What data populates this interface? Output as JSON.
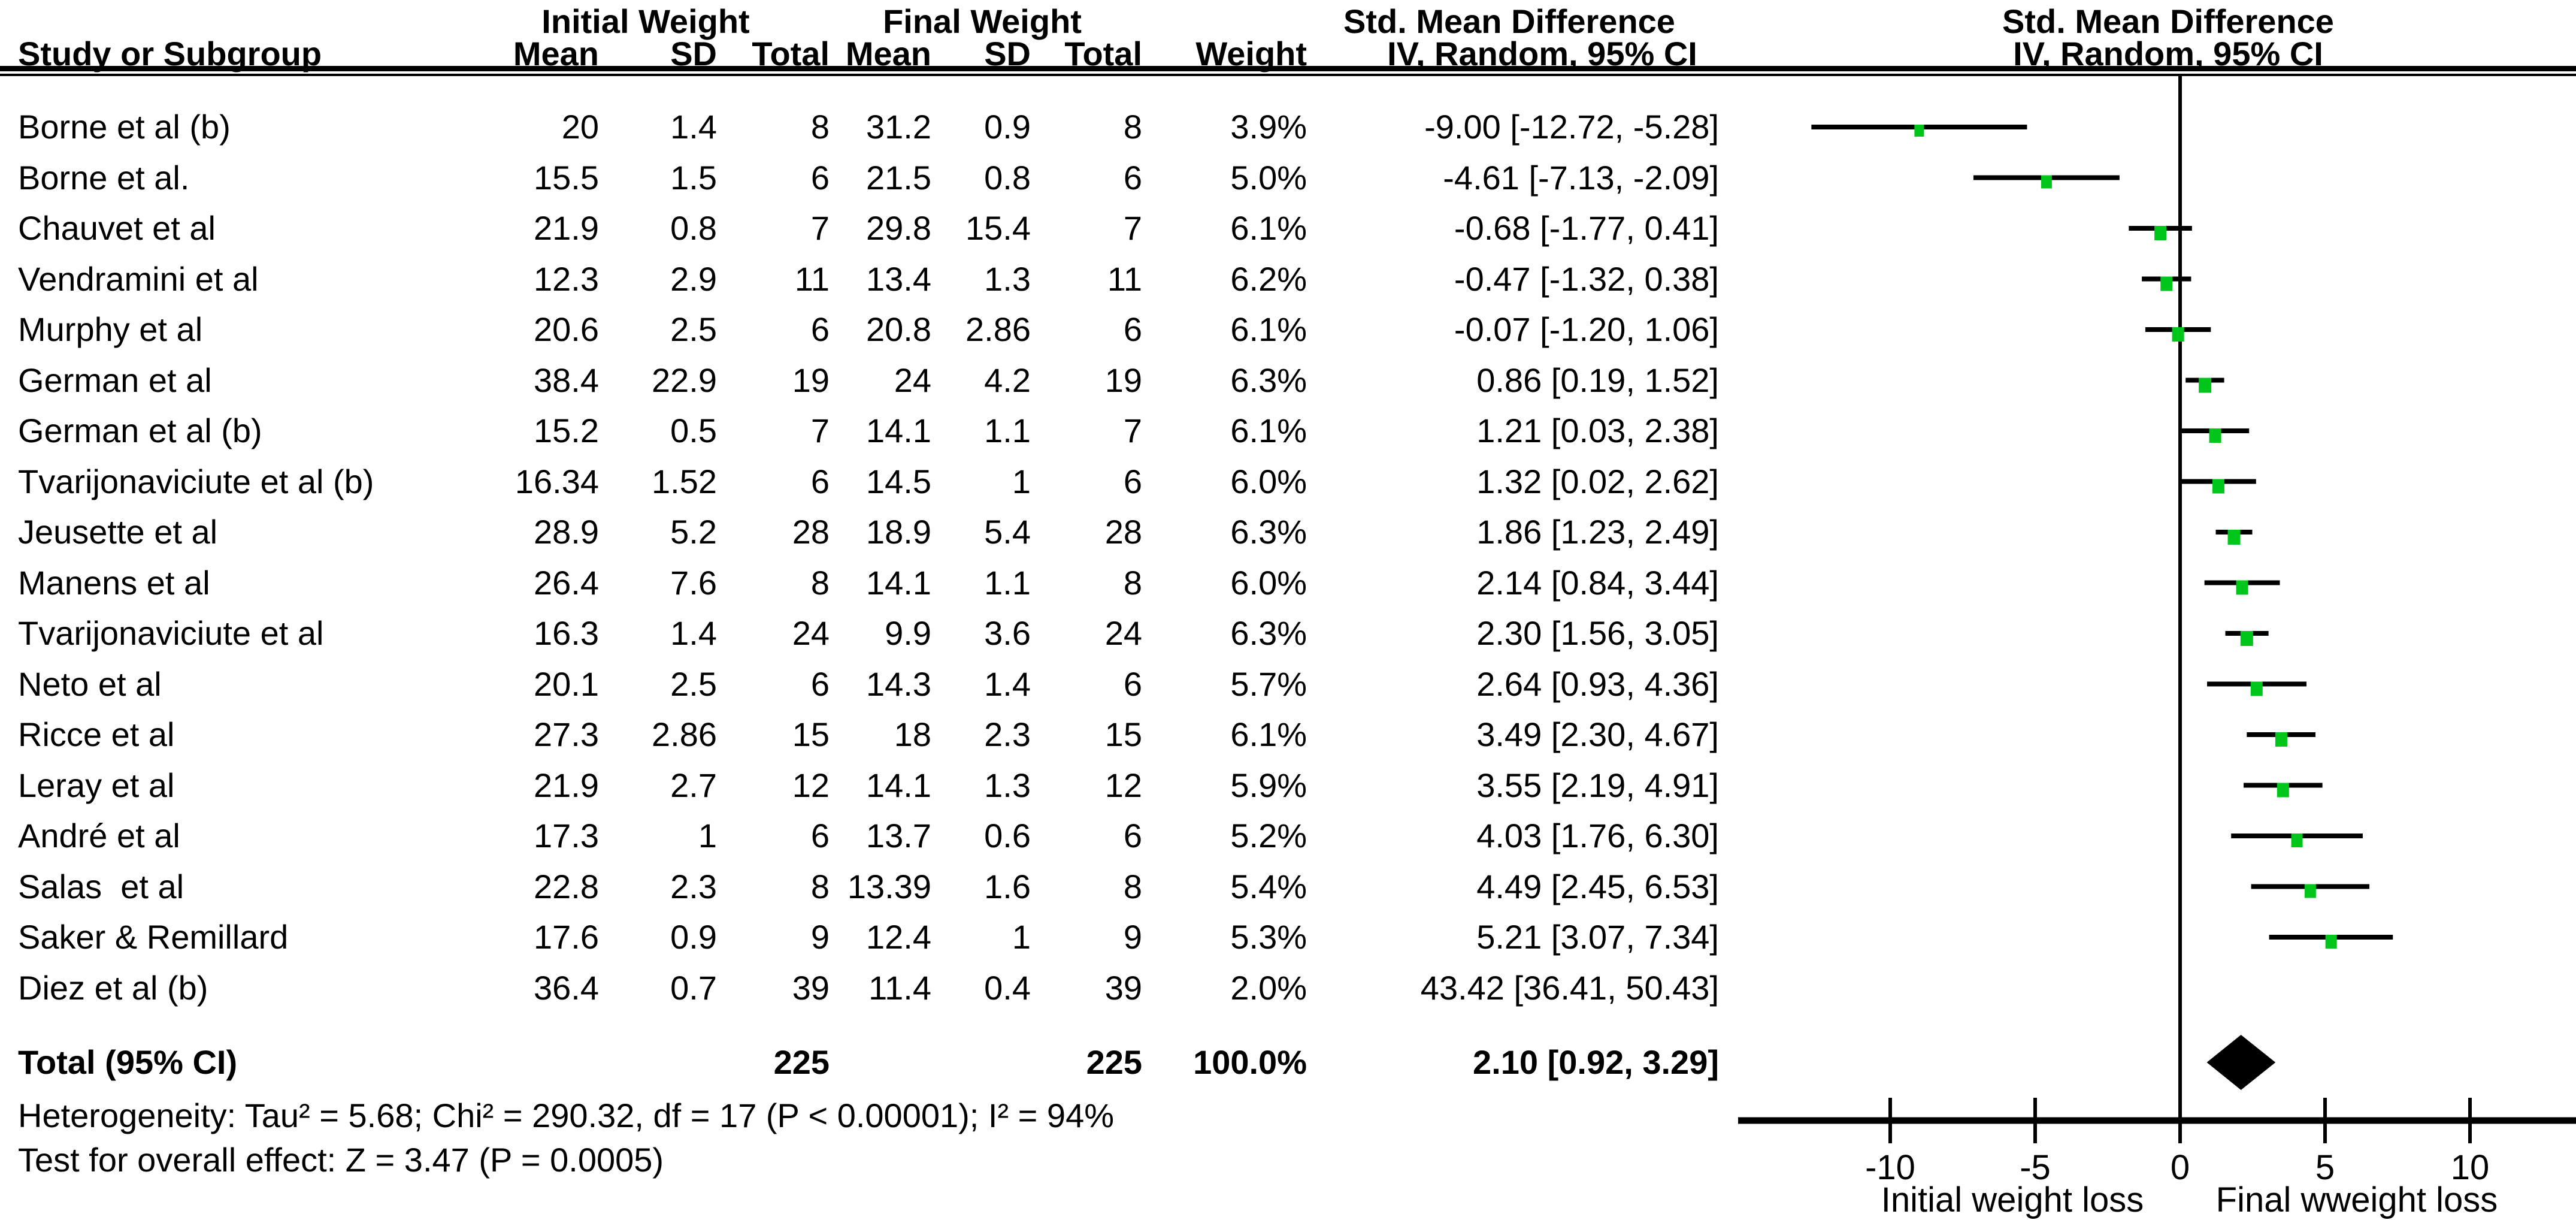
{
  "header": {
    "study_col": "Study or Subgroup",
    "group_initial": "Initial Weight",
    "group_final": "Final Weight",
    "smd_table_title": "Std. Mean Difference",
    "smd_table_sub": "IV, Random, 95% CI",
    "smd_plot_title": "Std. Mean Difference",
    "smd_plot_sub": "IV, Random, 95% CI",
    "mean1": "Mean",
    "sd1": "SD",
    "total1": "Total",
    "mean2": "Mean",
    "sd2": "SD",
    "total2": "Total",
    "weight": "Weight"
  },
  "rows": [
    {
      "study": "Borne et al (b)",
      "mean1": "20",
      "sd1": "1.4",
      "total1": "8",
      "mean2": "31.2",
      "sd2": "0.9",
      "total2": "8",
      "weight": "3.9%",
      "ci": "-9.00 [-12.72, -5.28]"
    },
    {
      "study": "Borne et al.",
      "mean1": "15.5",
      "sd1": "1.5",
      "total1": "6",
      "mean2": "21.5",
      "sd2": "0.8",
      "total2": "6",
      "weight": "5.0%",
      "ci": "-4.61 [-7.13, -2.09]"
    },
    {
      "study": "Chauvet et al",
      "mean1": "21.9",
      "sd1": "0.8",
      "total1": "7",
      "mean2": "29.8",
      "sd2": "15.4",
      "total2": "7",
      "weight": "6.1%",
      "ci": "-0.68 [-1.77, 0.41]"
    },
    {
      "study": "Vendramini et al",
      "mean1": "12.3",
      "sd1": "2.9",
      "total1": "11",
      "mean2": "13.4",
      "sd2": "1.3",
      "total2": "11",
      "weight": "6.2%",
      "ci": "-0.47 [-1.32, 0.38]"
    },
    {
      "study": "Murphy et al",
      "mean1": "20.6",
      "sd1": "2.5",
      "total1": "6",
      "mean2": "20.8",
      "sd2": "2.86",
      "total2": "6",
      "weight": "6.1%",
      "ci": "-0.07 [-1.20, 1.06]"
    },
    {
      "study": "German et al",
      "mean1": "38.4",
      "sd1": "22.9",
      "total1": "19",
      "mean2": "24",
      "sd2": "4.2",
      "total2": "19",
      "weight": "6.3%",
      "ci": "0.86 [0.19, 1.52]"
    },
    {
      "study": "German et al (b)",
      "mean1": "15.2",
      "sd1": "0.5",
      "total1": "7",
      "mean2": "14.1",
      "sd2": "1.1",
      "total2": "7",
      "weight": "6.1%",
      "ci": "1.21 [0.03, 2.38]"
    },
    {
      "study": "Tvarijonaviciute et al (b)",
      "mean1": "16.34",
      "sd1": "1.52",
      "total1": "6",
      "mean2": "14.5",
      "sd2": "1",
      "total2": "6",
      "weight": "6.0%",
      "ci": "1.32 [0.02, 2.62]"
    },
    {
      "study": "Jeusette et al",
      "mean1": "28.9",
      "sd1": "5.2",
      "total1": "28",
      "mean2": "18.9",
      "sd2": "5.4",
      "total2": "28",
      "weight": "6.3%",
      "ci": "1.86 [1.23, 2.49]"
    },
    {
      "study": "Manens et al",
      "mean1": "26.4",
      "sd1": "7.6",
      "total1": "8",
      "mean2": "14.1",
      "sd2": "1.1",
      "total2": "8",
      "weight": "6.0%",
      "ci": "2.14 [0.84, 3.44]"
    },
    {
      "study": "Tvarijonaviciute et al",
      "mean1": "16.3",
      "sd1": "1.4",
      "total1": "24",
      "mean2": "9.9",
      "sd2": "3.6",
      "total2": "24",
      "weight": "6.3%",
      "ci": "2.30 [1.56, 3.05]"
    },
    {
      "study": "Neto et al",
      "mean1": "20.1",
      "sd1": "2.5",
      "total1": "6",
      "mean2": "14.3",
      "sd2": "1.4",
      "total2": "6",
      "weight": "5.7%",
      "ci": "2.64 [0.93, 4.36]"
    },
    {
      "study": "Ricce et al",
      "mean1": "27.3",
      "sd1": "2.86",
      "total1": "15",
      "mean2": "18",
      "sd2": "2.3",
      "total2": "15",
      "weight": "6.1%",
      "ci": "3.49 [2.30, 4.67]"
    },
    {
      "study": "Leray et al",
      "mean1": "21.9",
      "sd1": "2.7",
      "total1": "12",
      "mean2": "14.1",
      "sd2": "1.3",
      "total2": "12",
      "weight": "5.9%",
      "ci": "3.55 [2.19, 4.91]"
    },
    {
      "study": "André et al",
      "mean1": "17.3",
      "sd1": "1",
      "total1": "6",
      "mean2": "13.7",
      "sd2": "0.6",
      "total2": "6",
      "weight": "5.2%",
      "ci": "4.03 [1.76, 6.30]"
    },
    {
      "study": "Salas  et al",
      "mean1": "22.8",
      "sd1": "2.3",
      "total1": "8",
      "mean2": "13.39",
      "sd2": "1.6",
      "total2": "8",
      "weight": "5.4%",
      "ci": "4.49 [2.45, 6.53]"
    },
    {
      "study": "Saker & Remillard",
      "mean1": "17.6",
      "sd1": "0.9",
      "total1": "9",
      "mean2": "12.4",
      "sd2": "1",
      "total2": "9",
      "weight": "5.3%",
      "ci": "5.21 [3.07, 7.34]"
    },
    {
      "study": "Diez et al (b)",
      "mean1": "36.4",
      "sd1": "0.7",
      "total1": "39",
      "mean2": "11.4",
      "sd2": "0.4",
      "total2": "39",
      "weight": "2.0%",
      "ci": "43.42 [36.41, 50.43]"
    }
  ],
  "total_row": {
    "label": "Total (95% CI)",
    "total1": "225",
    "total2": "225",
    "weight": "100.0%",
    "ci": "2.10 [0.92, 3.29]"
  },
  "footer": {
    "heterogeneity": "Heterogeneity: Tau² = 5.68; Chi² = 290.32, df = 17 (P < 0.00001); I² = 94%",
    "overall_effect": "Test for overall effect: Z = 3.47 (P = 0.0005)"
  },
  "chart_data": {
    "type": "forest",
    "effect_measure": "Std. Mean Difference",
    "method": "IV, Random, 95% CI",
    "axis": {
      "ticks": [
        -10,
        -5,
        0,
        5,
        10
      ],
      "drawn_range": [
        -15.2,
        13.6
      ],
      "left_caption": "Initial weight loss",
      "right_caption": "Final wweight loss"
    },
    "studies": [
      {
        "name": "Borne et al (b)",
        "estimate": -9.0,
        "ci_low": -12.72,
        "ci_high": -5.28,
        "weight_pct": 3.9,
        "drawn": true
      },
      {
        "name": "Borne et al.",
        "estimate": -4.61,
        "ci_low": -7.13,
        "ci_high": -2.09,
        "weight_pct": 5.0,
        "drawn": true
      },
      {
        "name": "Chauvet et al",
        "estimate": -0.68,
        "ci_low": -1.77,
        "ci_high": 0.41,
        "weight_pct": 6.1,
        "drawn": true
      },
      {
        "name": "Vendramini et al",
        "estimate": -0.47,
        "ci_low": -1.32,
        "ci_high": 0.38,
        "weight_pct": 6.2,
        "drawn": true
      },
      {
        "name": "Murphy et al",
        "estimate": -0.07,
        "ci_low": -1.2,
        "ci_high": 1.06,
        "weight_pct": 6.1,
        "drawn": true
      },
      {
        "name": "German et al",
        "estimate": 0.86,
        "ci_low": 0.19,
        "ci_high": 1.52,
        "weight_pct": 6.3,
        "drawn": true
      },
      {
        "name": "German et al (b)",
        "estimate": 1.21,
        "ci_low": 0.03,
        "ci_high": 2.38,
        "weight_pct": 6.1,
        "drawn": true
      },
      {
        "name": "Tvarijonaviciute et al (b)",
        "estimate": 1.32,
        "ci_low": 0.02,
        "ci_high": 2.62,
        "weight_pct": 6.0,
        "drawn": true
      },
      {
        "name": "Jeusette et al",
        "estimate": 1.86,
        "ci_low": 1.23,
        "ci_high": 2.49,
        "weight_pct": 6.3,
        "drawn": true
      },
      {
        "name": "Manens et al",
        "estimate": 2.14,
        "ci_low": 0.84,
        "ci_high": 3.44,
        "weight_pct": 6.0,
        "drawn": true
      },
      {
        "name": "Tvarijonaviciute et al",
        "estimate": 2.3,
        "ci_low": 1.56,
        "ci_high": 3.05,
        "weight_pct": 6.3,
        "drawn": true
      },
      {
        "name": "Neto et al",
        "estimate": 2.64,
        "ci_low": 0.93,
        "ci_high": 4.36,
        "weight_pct": 5.7,
        "drawn": true
      },
      {
        "name": "Ricce et al",
        "estimate": 3.49,
        "ci_low": 2.3,
        "ci_high": 4.67,
        "weight_pct": 6.1,
        "drawn": true
      },
      {
        "name": "Leray et al",
        "estimate": 3.55,
        "ci_low": 2.19,
        "ci_high": 4.91,
        "weight_pct": 5.9,
        "drawn": true
      },
      {
        "name": "André et al",
        "estimate": 4.03,
        "ci_low": 1.76,
        "ci_high": 6.3,
        "weight_pct": 5.2,
        "drawn": true
      },
      {
        "name": "Salas  et al",
        "estimate": 4.49,
        "ci_low": 2.45,
        "ci_high": 6.53,
        "weight_pct": 5.4,
        "drawn": true
      },
      {
        "name": "Saker & Remillard",
        "estimate": 5.21,
        "ci_low": 3.07,
        "ci_high": 7.34,
        "weight_pct": 5.3,
        "drawn": true
      },
      {
        "name": "Diez et al (b)",
        "estimate": 43.42,
        "ci_low": 36.41,
        "ci_high": 50.43,
        "weight_pct": 2.0,
        "drawn": false
      }
    ],
    "total": {
      "name": "Total (95% CI)",
      "estimate": 2.1,
      "ci_low": 0.92,
      "ci_high": 3.29
    }
  },
  "colors": {
    "marker_green": "#00c61c",
    "diamond_black": "#000000",
    "line_black": "#000000"
  }
}
